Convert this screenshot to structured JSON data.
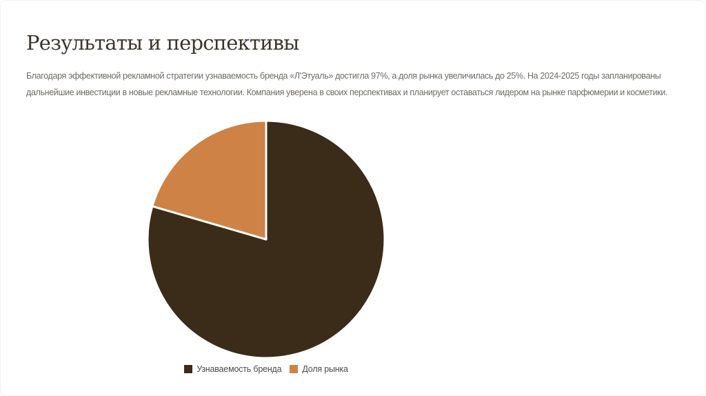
{
  "slide": {
    "title": "Результаты и перспективы",
    "body": "Благодаря эффективной рекламной стратегии узнаваемость бренда «Л'Этуаль» достигла 97%, а доля рынка увеличилась до 25%. На 2024-2025 годы запланированы дальнейшие инвестиции в новые рекламные технологии. Компания уверена в своих перспективах и планирует оставаться лидером на рынке парфюмерии и косметики."
  },
  "chart_data": {
    "type": "pie",
    "title": "",
    "series": [
      {
        "name": "Узнаваемость бренда",
        "value": 97,
        "color": "#3B2B19"
      },
      {
        "name": "Доля рынка",
        "value": 25,
        "color": "#CE8245"
      }
    ],
    "start_angle_deg": -90,
    "direction": "clockwise",
    "legend_position": "bottom",
    "stroke_color": "#FFFFFF",
    "stroke_width": 3
  }
}
